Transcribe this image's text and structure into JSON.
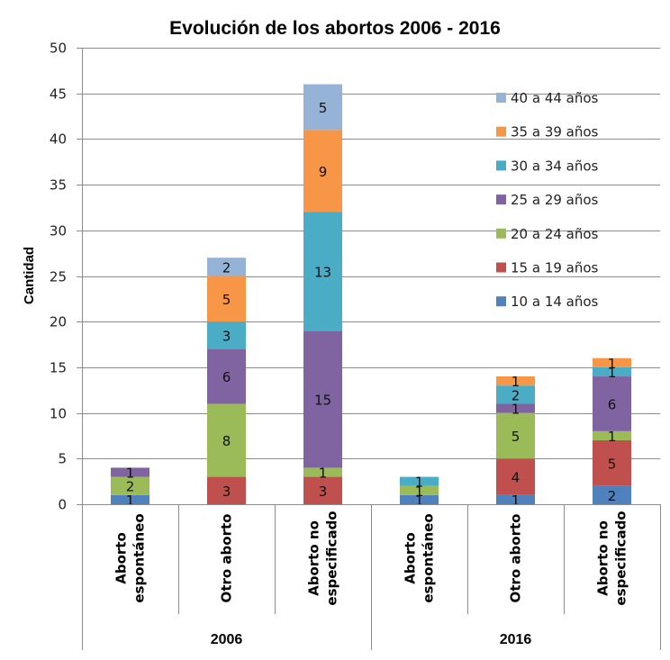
{
  "chart_data": {
    "type": "bar",
    "stacked": true,
    "title": "Evolución de los abortos 2006 - 2016",
    "xlabel": "",
    "ylabel": "Cantidad",
    "ylim": [
      0,
      50
    ],
    "yticks": [
      0,
      5,
      10,
      15,
      20,
      25,
      30,
      35,
      40,
      45,
      50
    ],
    "grid": true,
    "legend_position": "top-right",
    "groups": [
      {
        "label": "2006",
        "categories": [
          "Aborto espontáneo",
          "Otro aborto",
          "Aborto no especificado"
        ]
      },
      {
        "label": "2016",
        "categories": [
          "Aborto espontáneo",
          "Otro aborto",
          "Aborto no especificado"
        ]
      }
    ],
    "categories": [
      {
        "lines": [
          "Aborto",
          "espontáneo"
        ],
        "group": "2006"
      },
      {
        "lines": [
          "Otro aborto"
        ],
        "group": "2006"
      },
      {
        "lines": [
          "Aborto no",
          "especificado"
        ],
        "group": "2006"
      },
      {
        "lines": [
          "Aborto",
          "espontáneo"
        ],
        "group": "2016"
      },
      {
        "lines": [
          "Otro aborto"
        ],
        "group": "2016"
      },
      {
        "lines": [
          "Aborto no",
          "especificado"
        ],
        "group": "2016"
      }
    ],
    "series": [
      {
        "name": "10 a 14 años",
        "color": "#4f81bd",
        "values": [
          1,
          0,
          0,
          1,
          1,
          2
        ]
      },
      {
        "name": "15 a 19 años",
        "color": "#c0504d",
        "values": [
          0,
          3,
          3,
          0,
          4,
          5
        ]
      },
      {
        "name": "20 a 24 años",
        "color": "#9bbb59",
        "values": [
          2,
          8,
          1,
          1,
          5,
          1
        ]
      },
      {
        "name": "25 a 29 años",
        "color": "#8064a2",
        "values": [
          1,
          6,
          15,
          0,
          1,
          6
        ]
      },
      {
        "name": "30 a 34 años",
        "color": "#4bacc6",
        "values": [
          0,
          3,
          13,
          1,
          2,
          1
        ]
      },
      {
        "name": "35 a 39 años",
        "color": "#f79646",
        "values": [
          0,
          5,
          9,
          0,
          1,
          1
        ]
      },
      {
        "name": "40 a 44 años",
        "color": "#95b3d7",
        "values": [
          0,
          2,
          5,
          0,
          0,
          0
        ]
      }
    ]
  }
}
